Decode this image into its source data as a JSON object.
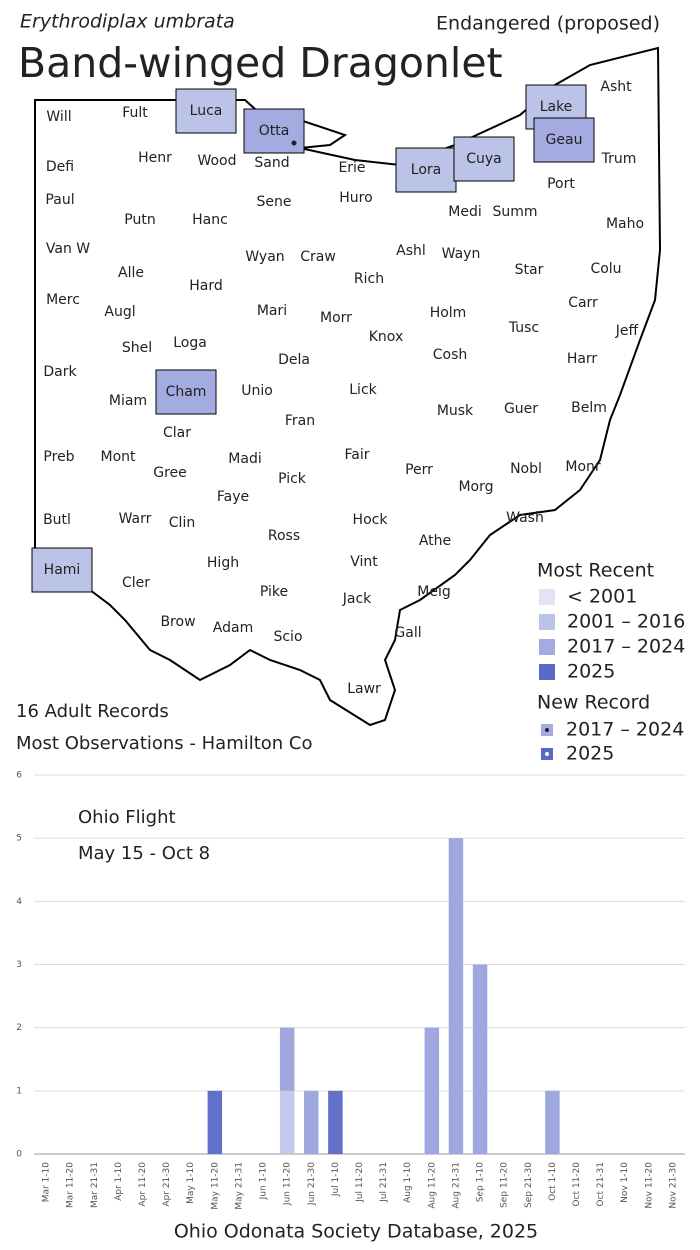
{
  "header": {
    "scientific_name": "Erythrodiplax umbrata",
    "status": "Endangered (proposed)",
    "title": "Band-winged Dragonlet"
  },
  "map": {
    "counties": [
      {
        "name": "Will"
      },
      {
        "name": "Fult"
      },
      {
        "name": "Luca",
        "color": "#bcc3e8"
      },
      {
        "name": "Otta",
        "color": "#a3abe0",
        "new_record": true
      },
      {
        "name": "Lake",
        "color": "#bcc3e8"
      },
      {
        "name": "Asht"
      },
      {
        "name": "Defi"
      },
      {
        "name": "Henr"
      },
      {
        "name": "Wood"
      },
      {
        "name": "Sand"
      },
      {
        "name": "Erie"
      },
      {
        "name": "Lora",
        "color": "#bcc3e8"
      },
      {
        "name": "Cuya",
        "color": "#bcc3e8"
      },
      {
        "name": "Geau",
        "color": "#a3abe0"
      },
      {
        "name": "Trum"
      },
      {
        "name": "Paul"
      },
      {
        "name": "Putn"
      },
      {
        "name": "Hanc"
      },
      {
        "name": "Sene"
      },
      {
        "name": "Huro"
      },
      {
        "name": "Medi"
      },
      {
        "name": "Summ"
      },
      {
        "name": "Port"
      },
      {
        "name": "Maho"
      },
      {
        "name": "Van W"
      },
      {
        "name": "Alle"
      },
      {
        "name": "Hard"
      },
      {
        "name": "Wyan"
      },
      {
        "name": "Craw"
      },
      {
        "name": "Rich"
      },
      {
        "name": "Ashl"
      },
      {
        "name": "Wayn"
      },
      {
        "name": "Star"
      },
      {
        "name": "Colu"
      },
      {
        "name": "Merc"
      },
      {
        "name": "Augl"
      },
      {
        "name": "Mari"
      },
      {
        "name": "Morr"
      },
      {
        "name": "Knox"
      },
      {
        "name": "Holm"
      },
      {
        "name": "Tusc"
      },
      {
        "name": "Carr"
      },
      {
        "name": "Jeff"
      },
      {
        "name": "Shel"
      },
      {
        "name": "Loga"
      },
      {
        "name": "Dela"
      },
      {
        "name": "Cosh"
      },
      {
        "name": "Harr"
      },
      {
        "name": "Dark"
      },
      {
        "name": "Miam"
      },
      {
        "name": "Cham",
        "color": "#a3abe0"
      },
      {
        "name": "Unio"
      },
      {
        "name": "Lick"
      },
      {
        "name": "Musk"
      },
      {
        "name": "Guer"
      },
      {
        "name": "Belm"
      },
      {
        "name": "Clar"
      },
      {
        "name": "Fran"
      },
      {
        "name": "Preb"
      },
      {
        "name": "Mont"
      },
      {
        "name": "Gree"
      },
      {
        "name": "Madi"
      },
      {
        "name": "Fair"
      },
      {
        "name": "Perr"
      },
      {
        "name": "Nobl"
      },
      {
        "name": "Monr"
      },
      {
        "name": "Morg"
      },
      {
        "name": "Pick"
      },
      {
        "name": "Faye"
      },
      {
        "name": "Butl"
      },
      {
        "name": "Warr"
      },
      {
        "name": "Clin"
      },
      {
        "name": "Hock"
      },
      {
        "name": "Wash"
      },
      {
        "name": "Ross"
      },
      {
        "name": "Athe"
      },
      {
        "name": "Hami",
        "color": "#bcc3e8"
      },
      {
        "name": "Cler"
      },
      {
        "name": "High"
      },
      {
        "name": "Vint"
      },
      {
        "name": "Meig"
      },
      {
        "name": "Pike"
      },
      {
        "name": "Jack"
      },
      {
        "name": "Brow"
      },
      {
        "name": "Adam"
      },
      {
        "name": "Scio"
      },
      {
        "name": "Gall"
      },
      {
        "name": "Lawr"
      }
    ],
    "legend": {
      "title": "Most Recent",
      "items": [
        {
          "label": "< 2001",
          "color": "#e2e4f6"
        },
        {
          "label": "2001 – 2016",
          "color": "#bcc3e8"
        },
        {
          "label": "2017 – 2024",
          "color": "#a3abe0"
        },
        {
          "label": "2025",
          "color": "#5a68c6"
        }
      ]
    },
    "new_record_legend": {
      "title": "New Record",
      "items": [
        {
          "label": "2017 – 2024",
          "color": "#a3abe0",
          "dot": "#222"
        },
        {
          "label": "2025",
          "color": "#5a68c6",
          "dot": "#fff"
        }
      ]
    }
  },
  "summary": {
    "records": "16 Adult Records",
    "most_observations": "Most Observations - Hamilton Co"
  },
  "chart_data": {
    "type": "bar",
    "stacked": true,
    "annotations": [
      "Ohio Flight",
      "May 15 - Oct 8"
    ],
    "categories": [
      "Mar 1-10",
      "Mar 11-20",
      "Mar 21-31",
      "Apr 1-10",
      "Apr 11-20",
      "Apr 21-30",
      "May 1-10",
      "May 11-20",
      "May 21-31",
      "Jun 1-10",
      "Jun 11-20",
      "Jun 21-30",
      "Jul 1-10",
      "Jul 11-20",
      "Jul 21-31",
      "Aug 1-10",
      "Aug 11-20",
      "Aug 21-31",
      "Sep 1-10",
      "Sep 11-20",
      "Sep 21-30",
      "Oct 1-10",
      "Oct 11-20",
      "Oct 21-31",
      "Nov 1-10",
      "Nov 11-20",
      "Nov 21-30"
    ],
    "series": [
      {
        "color": "#c3c9ec",
        "values": [
          0,
          0,
          0,
          0,
          0,
          0,
          0,
          0,
          0,
          0,
          1,
          0,
          0,
          0,
          0,
          0,
          0,
          0,
          0,
          0,
          0,
          0,
          0,
          0,
          0,
          0,
          0
        ]
      },
      {
        "color": "#9ea8df",
        "values": [
          0,
          0,
          0,
          0,
          0,
          0,
          0,
          0,
          0,
          0,
          1,
          1,
          0,
          0,
          0,
          0,
          2,
          5,
          3,
          0,
          0,
          1,
          0,
          0,
          0,
          0,
          0
        ]
      },
      {
        "color": "#6170c9",
        "values": [
          0,
          0,
          0,
          0,
          0,
          0,
          0,
          1,
          0,
          0,
          0,
          0,
          1,
          0,
          0,
          0,
          0,
          0,
          0,
          0,
          0,
          0,
          0,
          0,
          0,
          0,
          0
        ]
      }
    ],
    "ylim": [
      0,
      6
    ],
    "yticks": [
      0,
      1,
      2,
      3,
      4,
      5,
      6
    ],
    "grid": true
  },
  "footer": "Ohio Odonata Society Database, 2025"
}
